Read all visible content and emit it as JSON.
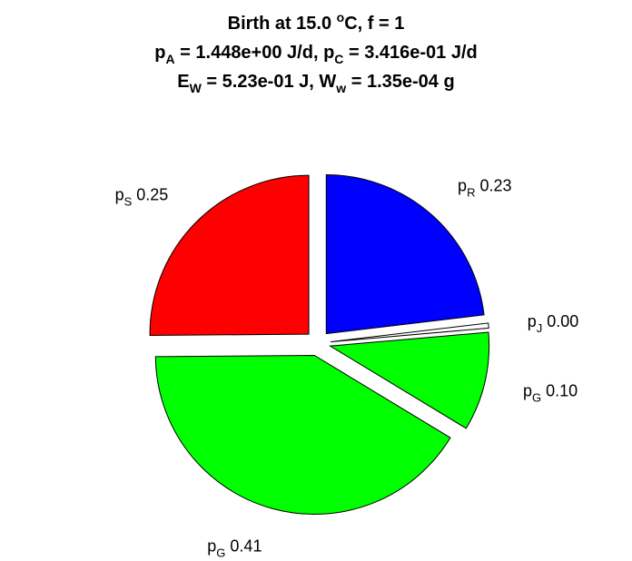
{
  "chart_data": {
    "type": "pie",
    "title": {
      "line1": {
        "text": "Birth at 15.0 ",
        "sup": "o",
        "after": "C, f = 1"
      },
      "line2": [
        {
          "base": "p",
          "sub": "A",
          "value": " = 1.448e+00 J/d, "
        },
        {
          "base": "p",
          "sub": "C",
          "value": " = 3.416e-01 J/d"
        }
      ],
      "line3": [
        {
          "base": "E",
          "sub": "W",
          "value": " = 5.23e-01 J, "
        },
        {
          "base": "W",
          "sub": "w",
          "value": " = 1.35e-04 g"
        }
      ]
    },
    "start_angle_deg": 90,
    "direction": "clockwise",
    "exploded": true,
    "slices": [
      {
        "base": "p",
        "sub": "R",
        "value": 0.23,
        "value_label": "0.23",
        "color": "#0000ff"
      },
      {
        "base": "p",
        "sub": "J",
        "value": 0.005,
        "value_label": "0.00",
        "color": "#ffffff"
      },
      {
        "base": "p",
        "sub": "G",
        "value": 0.1,
        "value_label": "0.10",
        "color": "#00ff00"
      },
      {
        "base": "p",
        "sub": "G",
        "value": 0.41,
        "value_label": "0.41",
        "color": "#00ff00"
      },
      {
        "base": "p",
        "sub": "S",
        "value": 0.25,
        "value_label": "0.25",
        "color": "#ff0000"
      }
    ]
  }
}
